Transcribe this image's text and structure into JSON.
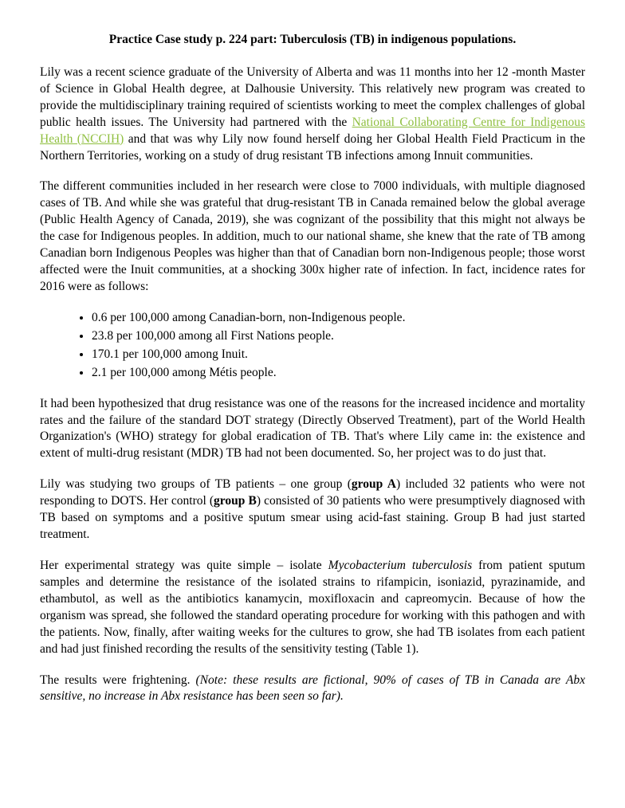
{
  "title": "Practice Case study p. 224  part: Tuberculosis (TB) in indigenous populations.",
  "p1a": "Lily was a recent science graduate of the University of Alberta and was 11 months into her 12 -month Master of Science in Global Health degree, at Dalhousie University. This relatively new program was created to provide the multidisciplinary training required of scientists working to meet the complex challenges of global public health issues. The University had partnered with the ",
  "p1_link": "National Collaborating Centre for Indigenous Health (NCCIH)",
  "p1b": " and that was why Lily now found herself doing her Global Health Field Practicum in the Northern Territories, working on a study of drug resistant TB infections among Innuit communities.",
  "p2": "The different communities included in her research were close to 7000 individuals, with multiple diagnosed cases of TB. And while she was grateful that drug-resistant TB in Canada remained below the global average (Public Health Agency of Canada, 2019), she was cognizant of the possibility that this might not always be the case for Indigenous peoples. In addition, much to our national shame, she knew that the rate of TB among Canadian born Indigenous Peoples was higher than that of Canadian born non-Indigenous people; those worst affected were the Inuit communities, at a shocking 300x higher rate of infection. In fact, incidence rates for 2016 were as follows:",
  "bullets": [
    "0.6 per 100,000 among Canadian-born, non-Indigenous people.",
    "23.8 per 100,000 among all First Nations people.",
    "170.1 per 100,000 among Inuit.",
    "2.1 per 100,000 among Métis people."
  ],
  "p3": "It had been hypothesized that drug resistance was one of the reasons for the increased incidence and mortality rates and the failure of the standard DOT strategy (Directly Observed Treatment), part of the World Health Organization's (WHO) strategy for global eradication of TB. That's where Lily came in: the existence and extent of multi-drug resistant (MDR) TB had not been documented. So, her project was to do just that.",
  "p4a": "Lily was studying two groups of TB patients – one group (",
  "p4_groupA": "group A",
  "p4b": ") included 32 patients who were not responding to DOTS. Her control (",
  "p4_groupB": "group B",
  "p4c": ") consisted of 30 patients who were presumptively diagnosed with TB based on symptoms and a positive sputum smear using acid-fast staining. Group B had just started treatment.",
  "p5a": "Her experimental strategy was quite simple – isolate ",
  "p5_species": "Mycobacterium tuberculosis",
  "p5b": " from patient sputum samples and determine the resistance of the isolated strains to rifampicin, isoniazid, pyrazinamide, and ethambutol, as well as the antibiotics kanamycin, moxifloxacin and capreomycin. Because of how the organism was spread, she followed the standard operating procedure for working with this pathogen and with the patients. Now, finally, after waiting weeks for the cultures to grow, she had TB isolates from each patient and had just finished recording the results of the sensitivity testing (Table 1).",
  "p6a": "The results were frightening. ",
  "p6_note": "(Note: these results are fictional, 90% of cases of TB in Canada are Abx sensitive, no increase in Abx resistance has been seen so far)."
}
